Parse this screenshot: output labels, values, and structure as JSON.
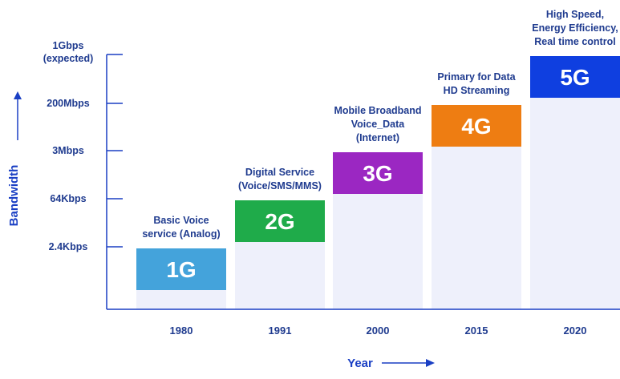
{
  "chart_data": {
    "type": "bar",
    "xlabel": "Year",
    "ylabel": "Bandwidth",
    "y_ticks": [
      "1Gbps\n(expected)",
      "200Mbps",
      "3Mbps",
      "64Kbps",
      "2.4Kbps"
    ],
    "categories": [
      "1980",
      "1991",
      "2000",
      "2015",
      "2020"
    ],
    "generations": [
      "1G",
      "2G",
      "3G",
      "4G",
      "5G"
    ],
    "bandwidth": [
      "2.4Kbps",
      "64Kbps",
      "3Mbps",
      "200Mbps",
      "1Gbps (expected)"
    ],
    "annotations": [
      "Basic Voice\nservice (Analog)",
      "Digital Service\n(Voice/SMS/MMS)",
      "Mobile Broadband\nVoice_Data\n(Internet)",
      "Primary for Data\nHD Streaming",
      "High Speed,\nEnergy Efficiency,\nReal time control"
    ],
    "colors": [
      "#44a3db",
      "#1fab4a",
      "#9b27c2",
      "#ee7d12",
      "#0f3fe0"
    ],
    "bar_fill": "#eef0fb",
    "axis_color": "#1a3fc4",
    "text_color": "#1f3b8f"
  }
}
